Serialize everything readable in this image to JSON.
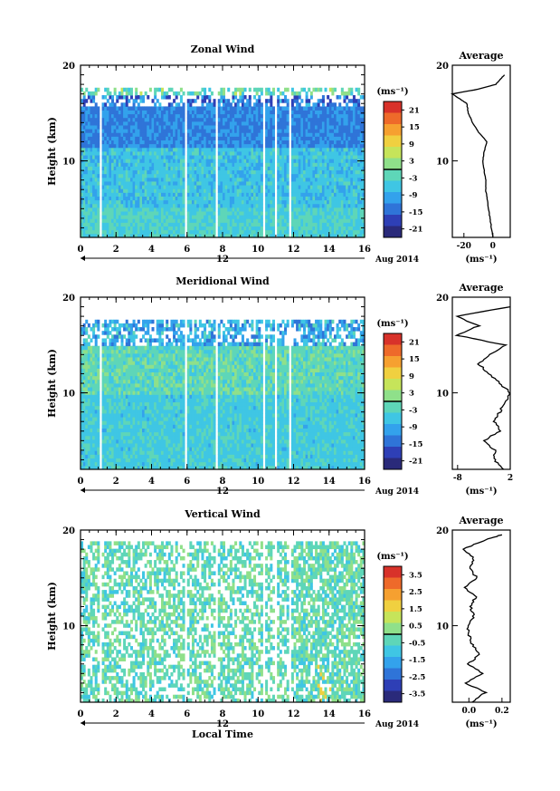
{
  "chart_data": [
    {
      "type": "heatmap",
      "title": "Zonal Wind",
      "ylabel": "Height (km)",
      "y_ticks": [
        "20",
        "10"
      ],
      "ylim": [
        2,
        20
      ],
      "x_ticks": [
        "0",
        "2",
        "4",
        "6",
        "8",
        "10",
        "12",
        "14",
        "16"
      ],
      "xlim": [
        0,
        16
      ],
      "day_label": "12",
      "date_label": "Aug 2014",
      "colorbar_unit": "(ms⁻¹)",
      "colorbar_ticks": [
        "21",
        "15",
        "9",
        "3",
        "-3",
        "-9",
        "-15",
        "-21"
      ],
      "colorbar_range": [
        -24,
        24
      ],
      "data_gaps_hours": [
        [
          1.1,
          1.2
        ],
        [
          5.9,
          6.0
        ],
        [
          7.6,
          7.7
        ],
        [
          10.3,
          10.4
        ],
        [
          10.9,
          11.0
        ],
        [
          11.7,
          11.8
        ]
      ],
      "profile": {
        "title": "Average",
        "x_ticks": [
          "-20",
          "0"
        ],
        "xlim": [
          -28,
          12
        ],
        "y_ticks": [
          "20",
          "10"
        ],
        "xlabel": "(ms⁻¹)",
        "heights_km": [
          2,
          3,
          4,
          5,
          6,
          7,
          8,
          9,
          10,
          11,
          12,
          13,
          14,
          15,
          16,
          16.5,
          17,
          17.5,
          18,
          18.5,
          19
        ],
        "values": [
          0,
          -1,
          -2,
          -3,
          -4,
          -5,
          -5,
          -6,
          -7,
          -6,
          -4,
          -10,
          -14,
          -17,
          -18,
          -23,
          -28,
          -10,
          2,
          5,
          8
        ]
      }
    },
    {
      "type": "heatmap",
      "title": "Meridional Wind",
      "ylabel": "Height (km)",
      "y_ticks": [
        "20",
        "10"
      ],
      "ylim": [
        2,
        20
      ],
      "x_ticks": [
        "0",
        "2",
        "4",
        "6",
        "8",
        "10",
        "12",
        "14",
        "16"
      ],
      "xlim": [
        0,
        16
      ],
      "day_label": "12",
      "date_label": "Aug 2014",
      "colorbar_unit": "(ms⁻¹)",
      "colorbar_ticks": [
        "21",
        "15",
        "9",
        "3",
        "-3",
        "-9",
        "-15",
        "-21"
      ],
      "colorbar_range": [
        -24,
        24
      ],
      "data_gaps_hours": [
        [
          1.1,
          1.2
        ],
        [
          5.9,
          6.0
        ],
        [
          7.6,
          7.7
        ],
        [
          10.3,
          10.4
        ],
        [
          10.9,
          11.0
        ],
        [
          11.7,
          11.8
        ]
      ],
      "profile": {
        "title": "Average",
        "x_ticks": [
          "-8",
          "2"
        ],
        "xlim": [
          -9,
          2
        ],
        "y_ticks": [
          "20",
          "10"
        ],
        "xlabel": "(ms⁻¹)",
        "heights_km": [
          2,
          3,
          4,
          5,
          6,
          7,
          8,
          9,
          10,
          11,
          12,
          13,
          14,
          15,
          16,
          17,
          18,
          19
        ],
        "values": [
          0.5,
          -1,
          -1,
          -3,
          0,
          -1,
          0,
          1,
          2,
          0,
          -2,
          -4,
          -2,
          1,
          -8,
          -4,
          -8,
          2
        ]
      }
    },
    {
      "type": "heatmap",
      "title": "Vertical Wind",
      "ylabel": "Height (km)",
      "xlabel": "Local Time",
      "y_ticks": [
        "20",
        "10"
      ],
      "ylim": [
        2,
        20
      ],
      "x_ticks": [
        "0",
        "2",
        "4",
        "6",
        "8",
        "10",
        "12",
        "14",
        "16"
      ],
      "xlim": [
        0,
        16
      ],
      "day_label": "12",
      "date_label": "Aug 2014",
      "colorbar_unit": "(ms⁻¹)",
      "colorbar_ticks": [
        "3.5",
        "2.5",
        "1.5",
        "0.5",
        "-0.5",
        "-1.5",
        "-2.5",
        "-3.5"
      ],
      "colorbar_range": [
        -4,
        4
      ],
      "data_gaps_hours": [
        [
          1.1,
          1.2
        ],
        [
          5.9,
          6.0
        ],
        [
          7.6,
          7.7
        ],
        [
          10.3,
          10.4
        ],
        [
          10.9,
          11.0
        ],
        [
          11.7,
          11.8
        ]
      ],
      "profile": {
        "title": "Average",
        "x_ticks": [
          "0.0",
          "0.2"
        ],
        "xlim": [
          -0.1,
          0.25
        ],
        "y_ticks": [
          "20",
          "10"
        ],
        "xlabel": "(ms⁻¹)",
        "heights_km": [
          2,
          3,
          4,
          5,
          6,
          7,
          8,
          9,
          10,
          11,
          12,
          13,
          14,
          15,
          16,
          17,
          18,
          19,
          19.5
        ],
        "values": [
          0.02,
          0.1,
          -0.02,
          0.08,
          0.0,
          0.06,
          0.02,
          0.0,
          -0.01,
          0.03,
          0.01,
          0.04,
          -0.02,
          0.05,
          0.0,
          0.03,
          -0.03,
          0.1,
          0.2
        ]
      }
    }
  ]
}
